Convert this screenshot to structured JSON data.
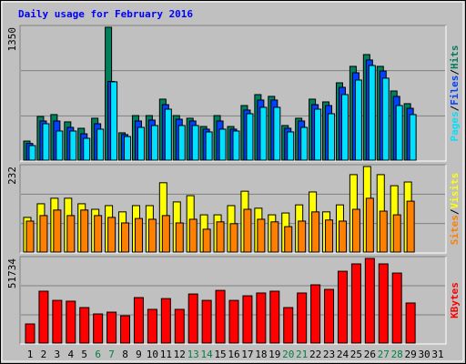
{
  "chart_data": [
    {
      "type": "bar",
      "title": "Daily usage for February 2016",
      "ylim": [
        0,
        1350
      ],
      "yticks": [
        1350
      ],
      "grid": true,
      "legend_separator": "/",
      "series": [
        {
          "name": "Hits",
          "color": "#00805c",
          "values": [
            194,
            444,
            463,
            389,
            324,
            426,
            1350,
            278,
            453,
            453,
            620,
            453,
            426,
            342,
            453,
            342,
            555,
            666,
            648,
            352,
            426,
            620,
            592,
            786,
            953,
            1073,
            953,
            703,
            574,
            null,
            null
          ]
        },
        {
          "name": "Files",
          "color": "#0040ff",
          "values": [
            170,
            398,
            398,
            333,
            268,
            370,
            800,
            260,
            398,
            407,
            564,
            416,
            398,
            315,
            398,
            315,
            509,
            611,
            611,
            324,
            398,
            564,
            555,
            740,
            888,
            1018,
            906,
            648,
            527,
            null,
            null
          ]
        },
        {
          "name": "Pages",
          "color": "#00e0ff",
          "values": [
            148,
            370,
            296,
            296,
            222,
            315,
            796,
            240,
            333,
            352,
            518,
            352,
            352,
            287,
            315,
            296,
            472,
            537,
            537,
            287,
            333,
            518,
            472,
            666,
            814,
            962,
            833,
            555,
            463,
            null,
            null
          ]
        }
      ]
    },
    {
      "type": "bar",
      "ylim": [
        0,
        232
      ],
      "yticks": [
        232
      ],
      "grid": true,
      "legend_separator": "/",
      "series": [
        {
          "name": "Visits",
          "color": "#ffff00",
          "values": [
            94,
            131,
            146,
            146,
            131,
            116,
            126,
            109,
            126,
            126,
            188,
            136,
            153,
            101,
            101,
            126,
            165,
            119,
            101,
            106,
            128,
            163,
            109,
            128,
            210,
            232,
            210,
            180,
            190,
            null,
            null
          ]
        },
        {
          "name": "Sites",
          "color": "#ff8000",
          "values": [
            84,
            99,
            114,
            99,
            114,
            99,
            94,
            79,
            91,
            89,
            99,
            79,
            89,
            62,
            82,
            77,
            116,
            89,
            82,
            69,
            84,
            109,
            87,
            84,
            116,
            146,
            111,
            101,
            138,
            null,
            null
          ]
        }
      ]
    },
    {
      "type": "bar",
      "ylim": [
        0,
        51734
      ],
      "yticks": [
        51734
      ],
      "grid": true,
      "categories": [
        "1",
        "2",
        "3",
        "4",
        "5",
        "6",
        "7",
        "8",
        "9",
        "10",
        "11",
        "12",
        "13",
        "14",
        "15",
        "16",
        "17",
        "18",
        "19",
        "20",
        "21",
        "22",
        "23",
        "24",
        "25",
        "26",
        "27",
        "28",
        "29",
        "30",
        "31"
      ],
      "category_colors": [
        "#000000",
        "#000000",
        "#000000",
        "#000000",
        "#000000",
        "#008040",
        "#008040",
        "#000000",
        "#000000",
        "#000000",
        "#000000",
        "#000000",
        "#008040",
        "#008040",
        "#000000",
        "#000000",
        "#000000",
        "#000000",
        "#000000",
        "#008040",
        "#008040",
        "#000000",
        "#000000",
        "#000000",
        "#000000",
        "#000000",
        "#008040",
        "#008040",
        "#000000",
        "#000000",
        "#000000"
      ],
      "series": [
        {
          "name": "KBytes",
          "color": "#ff0000",
          "values": [
            11678,
            31700,
            26100,
            25600,
            21700,
            17800,
            18900,
            16700,
            27800,
            20600,
            27200,
            20600,
            30000,
            26100,
            32200,
            26100,
            28900,
            30600,
            31700,
            21700,
            30600,
            35600,
            32800,
            43900,
            48400,
            51734,
            48400,
            42800,
            24500,
            null,
            null
          ]
        }
      ]
    }
  ]
}
